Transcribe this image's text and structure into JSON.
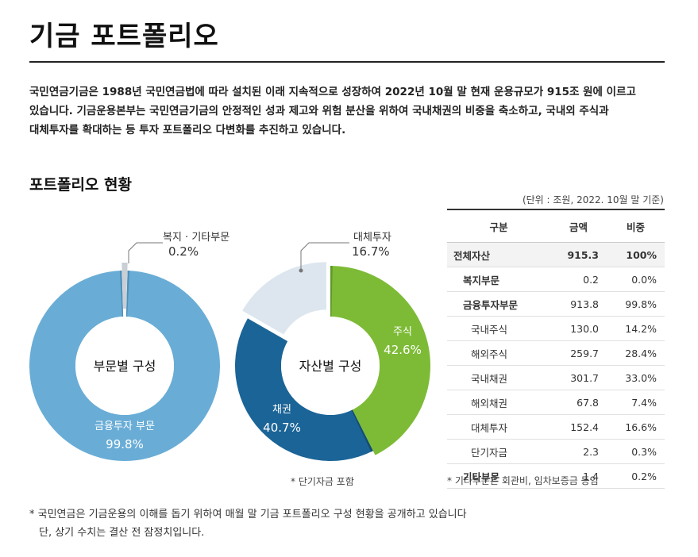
{
  "page_title": "기금 포트폴리오",
  "intro_lines": [
    "국민연금기금은 1988년 국민연금법에 따라 설치된 이래 지속적으로 성장하여 2022년 10월 말 현재 운용규모가 915조 원에 이르고",
    "있습니다. 기금운용본부는 국민연금기금의 안정적인 성과 제고와 위험 분산을 위하여 국내채권의 비중을 축소하고, 국내외 주식과",
    "대체투자를 확대하는 등 투자 포트폴리오 다변화를 추진하고 있습니다."
  ],
  "section_title": "포트폴리오 현황",
  "unit_note": "(단위 : 조원, 2022. 10월 말 기준)",
  "chart_data": [
    {
      "type": "pie",
      "center_label": "부문별 구성",
      "slices": [
        {
          "name": "금융투자 부문",
          "value": 99.8,
          "label": "99.8%",
          "color": "#69add6"
        },
        {
          "name": "복지 · 기타부문",
          "value": 0.2,
          "label": "0.2%",
          "color": "#c9cfd4"
        }
      ]
    },
    {
      "type": "pie",
      "center_label": "자산별 구성",
      "note": "* 단기자금 포함",
      "slices": [
        {
          "name": "주식",
          "value": 42.6,
          "label": "42.6%",
          "color": "#7dbb36"
        },
        {
          "name": "채권",
          "value": 40.7,
          "label": "40.7%",
          "color": "#1b6497"
        },
        {
          "name": "대체투자",
          "value": 16.7,
          "label": "16.7%",
          "color": "#dde6ee"
        }
      ]
    }
  ],
  "table": {
    "headers": [
      "구분",
      "금액",
      "비중"
    ],
    "rows": [
      {
        "level": 0,
        "name": "전체자산",
        "amount": "915.3",
        "ratio": "100%"
      },
      {
        "level": 1,
        "name": "복지부문",
        "amount": "0.2",
        "ratio": "0.0%"
      },
      {
        "level": 1,
        "name": "금융투자부문",
        "amount": "913.8",
        "ratio": "99.8%"
      },
      {
        "level": 2,
        "name": "국내주식",
        "amount": "130.0",
        "ratio": "14.2%"
      },
      {
        "level": 2,
        "name": "해외주식",
        "amount": "259.7",
        "ratio": "28.4%"
      },
      {
        "level": 2,
        "name": "국내채권",
        "amount": "301.7",
        "ratio": "33.0%"
      },
      {
        "level": 2,
        "name": "해외채권",
        "amount": "67.8",
        "ratio": "7.4%"
      },
      {
        "level": 2,
        "name": "대체투자",
        "amount": "152.4",
        "ratio": "16.6%"
      },
      {
        "level": 2,
        "name": "단기자금",
        "amount": "2.3",
        "ratio": "0.3%"
      },
      {
        "level": 1,
        "name": "기타부문",
        "amount": "1.4",
        "ratio": "0.2%"
      }
    ],
    "note": "* 기타부문은 회관비, 임차보증금 등임"
  },
  "footnote_lines": [
    "* 국민연금은 기금운용의 이해를 돕기 위하여 매월 말 기금 포트폴리오 구성 현황을 공개하고 있습니다",
    "단, 상기 수치는 결산 전 잠정치입니다."
  ]
}
